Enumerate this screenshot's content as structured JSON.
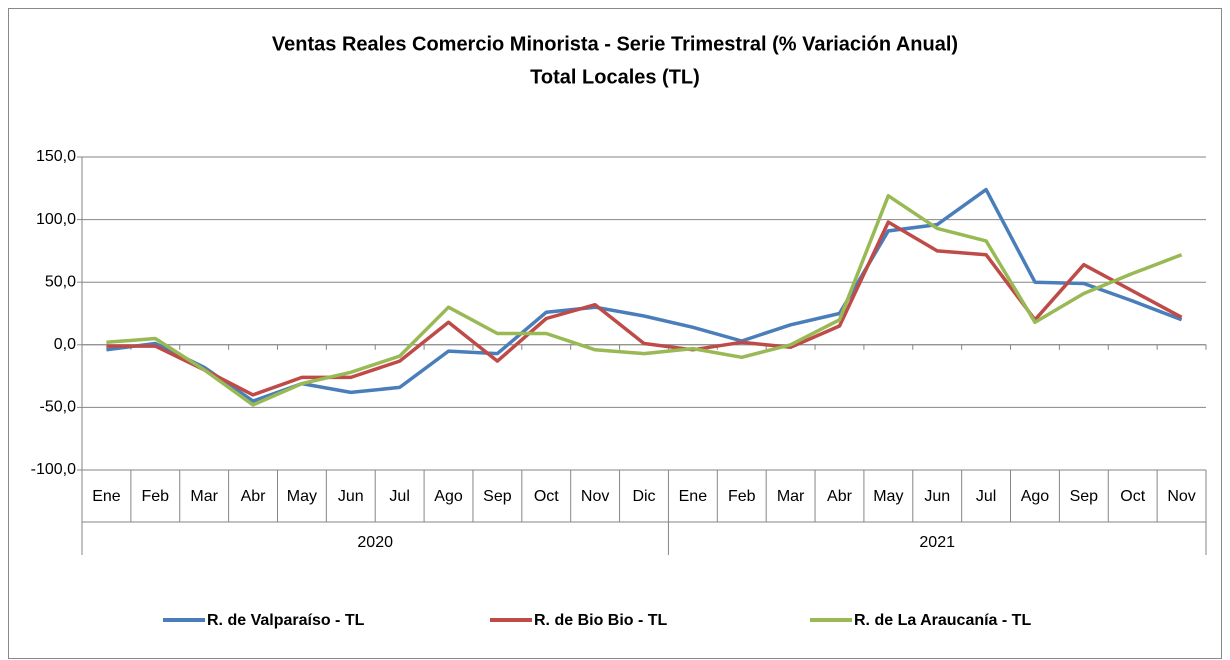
{
  "chart_data": {
    "type": "line",
    "title": "Ventas Reales Comercio Minorista - Serie Trimestral (% Variación Anual)",
    "subtitle": "Total Locales (TL)",
    "category_groups": [
      {
        "label": "2020",
        "categories": [
          "Ene",
          "Feb",
          "Mar",
          "Abr",
          "May",
          "Jun",
          "Jul",
          "Ago",
          "Sep",
          "Oct",
          "Nov",
          "Dic"
        ]
      },
      {
        "label": "2021",
        "categories": [
          "Ene",
          "Feb",
          "Mar",
          "Abr",
          "May",
          "Jun",
          "Jul",
          "Ago",
          "Sep",
          "Oct",
          "Nov"
        ]
      }
    ],
    "series": [
      {
        "name": "R. de Valparaíso - TL",
        "color": "#4a7ebb",
        "values": [
          -4,
          1,
          -18,
          -45,
          -31,
          -38,
          -34,
          -5,
          -7,
          26,
          30,
          23,
          14,
          3,
          16,
          25,
          91,
          96,
          124,
          50,
          49,
          35,
          20
        ]
      },
      {
        "name": "R. de Bio Bio - TL",
        "color": "#be4b48",
        "values": [
          -1,
          -1,
          -20,
          -40,
          -26,
          -26,
          -13,
          18,
          -13,
          21,
          32,
          1,
          -4,
          2,
          -2,
          15,
          98,
          75,
          72,
          20,
          64,
          43,
          22
        ]
      },
      {
        "name": "R. de La Araucanía - TL",
        "color": "#98b954",
        "values": [
          2,
          5,
          -20,
          -48,
          -31,
          -22,
          -9,
          30,
          9,
          9,
          -4,
          -7,
          -3,
          -10,
          0,
          20,
          119,
          93,
          83,
          18,
          41,
          57,
          72
        ]
      }
    ],
    "ylim": [
      -100,
      150
    ],
    "yticks": [
      {
        "value": -100,
        "label": "-100,0"
      },
      {
        "value": -50,
        "label": "-50,0"
      },
      {
        "value": 0,
        "label": "0,0"
      },
      {
        "value": 50,
        "label": "50,0"
      },
      {
        "value": 100,
        "label": "100,0"
      },
      {
        "value": 150,
        "label": "150,0"
      }
    ],
    "grid": true
  }
}
